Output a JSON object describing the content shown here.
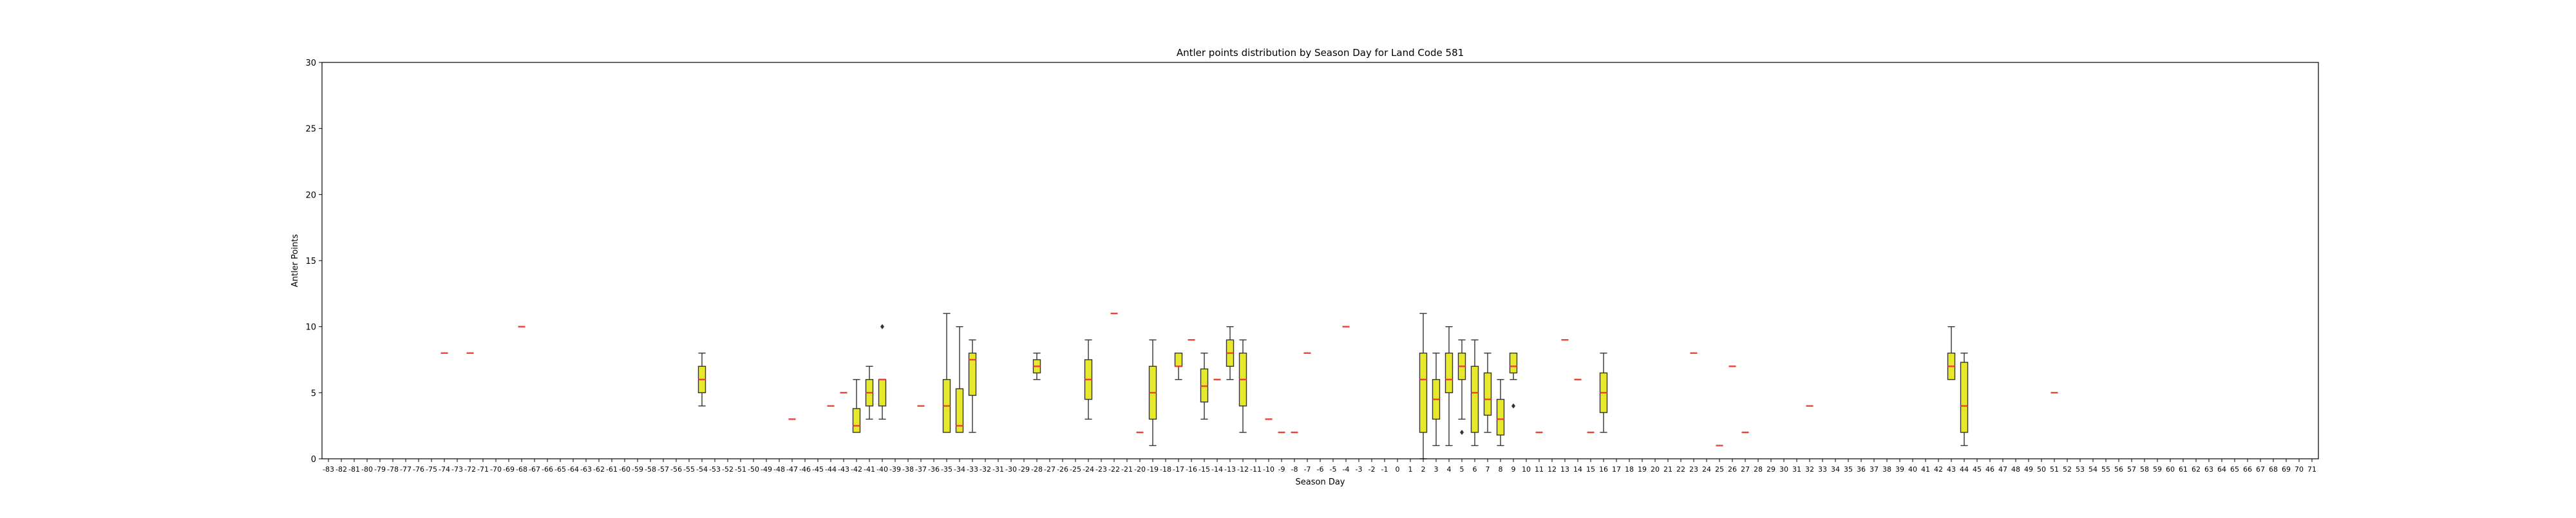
{
  "chart_data": {
    "type": "box",
    "title": "Antler points distribution by Season Day for Land Code 581",
    "xlabel": "Season Day",
    "ylabel": "Antler Points",
    "x_range": [
      -83,
      71
    ],
    "ylim": [
      0,
      30
    ],
    "yticks": [
      0,
      5,
      10,
      15,
      20,
      25,
      30
    ],
    "grid": false,
    "colors": {
      "box_fill": "#e8e82a",
      "median": "#e8443a",
      "edge": "#333333"
    },
    "boxes": [
      {
        "day": -74,
        "min": 8,
        "q1": 8,
        "median": 8,
        "q3": 8,
        "max": 8,
        "outliers": []
      },
      {
        "day": -72,
        "min": 8,
        "q1": 8,
        "median": 8,
        "q3": 8,
        "max": 8,
        "outliers": []
      },
      {
        "day": -68,
        "min": 10,
        "q1": 10,
        "median": 10,
        "q3": 10,
        "max": 10,
        "outliers": []
      },
      {
        "day": -54,
        "min": 4,
        "q1": 5,
        "median": 6,
        "q3": 7,
        "max": 8,
        "outliers": []
      },
      {
        "day": -47,
        "min": 3,
        "q1": 3,
        "median": 3,
        "q3": 3,
        "max": 3,
        "outliers": []
      },
      {
        "day": -44,
        "min": 4,
        "q1": 4,
        "median": 4,
        "q3": 4,
        "max": 4,
        "outliers": []
      },
      {
        "day": -43,
        "min": 5,
        "q1": 5,
        "median": 5,
        "q3": 5,
        "max": 5,
        "outliers": []
      },
      {
        "day": -42,
        "min": 2,
        "q1": 2,
        "median": 2.5,
        "q3": 3.8,
        "max": 6,
        "outliers": []
      },
      {
        "day": -41,
        "min": 3,
        "q1": 4,
        "median": 5,
        "q3": 6,
        "max": 7,
        "outliers": []
      },
      {
        "day": -40,
        "min": 3,
        "q1": 4,
        "median": 6,
        "q3": 6,
        "max": 6,
        "outliers": [
          10
        ]
      },
      {
        "day": -37,
        "min": 4,
        "q1": 4,
        "median": 4,
        "q3": 4,
        "max": 4,
        "outliers": []
      },
      {
        "day": -35,
        "min": 2,
        "q1": 2,
        "median": 4,
        "q3": 6,
        "max": 11,
        "outliers": []
      },
      {
        "day": -34,
        "min": 2,
        "q1": 2,
        "median": 2.5,
        "q3": 5.3,
        "max": 10,
        "outliers": []
      },
      {
        "day": -33,
        "min": 2,
        "q1": 4.8,
        "median": 7.5,
        "q3": 8,
        "max": 9,
        "outliers": []
      },
      {
        "day": -28,
        "min": 6,
        "q1": 6.5,
        "median": 7,
        "q3": 7.5,
        "max": 8,
        "outliers": []
      },
      {
        "day": -24,
        "min": 3,
        "q1": 4.5,
        "median": 6,
        "q3": 7.5,
        "max": 9,
        "outliers": []
      },
      {
        "day": -22,
        "min": 11,
        "q1": 11,
        "median": 11,
        "q3": 11,
        "max": 11,
        "outliers": []
      },
      {
        "day": -20,
        "min": 2,
        "q1": 2,
        "median": 2,
        "q3": 2,
        "max": 2,
        "outliers": []
      },
      {
        "day": -19,
        "min": 1,
        "q1": 3,
        "median": 5,
        "q3": 7,
        "max": 9,
        "outliers": []
      },
      {
        "day": -17,
        "min": 6,
        "q1": 7,
        "median": 7,
        "q3": 8,
        "max": 8,
        "outliers": []
      },
      {
        "day": -16,
        "min": 9,
        "q1": 9,
        "median": 9,
        "q3": 9,
        "max": 9,
        "outliers": []
      },
      {
        "day": -15,
        "min": 3,
        "q1": 4.3,
        "median": 5.5,
        "q3": 6.8,
        "max": 8,
        "outliers": []
      },
      {
        "day": -14,
        "min": 6,
        "q1": 6,
        "median": 6,
        "q3": 6,
        "max": 6,
        "outliers": []
      },
      {
        "day": -13,
        "min": 6,
        "q1": 7,
        "median": 8,
        "q3": 9,
        "max": 10,
        "outliers": []
      },
      {
        "day": -12,
        "min": 2,
        "q1": 4,
        "median": 6,
        "q3": 8,
        "max": 9,
        "outliers": []
      },
      {
        "day": -10,
        "min": 3,
        "q1": 3,
        "median": 3,
        "q3": 3,
        "max": 3,
        "outliers": []
      },
      {
        "day": -9,
        "min": 2,
        "q1": 2,
        "median": 2,
        "q3": 2,
        "max": 2,
        "outliers": []
      },
      {
        "day": -8,
        "min": 2,
        "q1": 2,
        "median": 2,
        "q3": 2,
        "max": 2,
        "outliers": []
      },
      {
        "day": -7,
        "min": 8,
        "q1": 8,
        "median": 8,
        "q3": 8,
        "max": 8,
        "outliers": []
      },
      {
        "day": -4,
        "min": 10,
        "q1": 10,
        "median": 10,
        "q3": 10,
        "max": 10,
        "outliers": []
      },
      {
        "day": 2,
        "min": 0,
        "q1": 2,
        "median": 6,
        "q3": 8,
        "max": 11,
        "outliers": []
      },
      {
        "day": 3,
        "min": 1,
        "q1": 3,
        "median": 4.5,
        "q3": 6,
        "max": 8,
        "outliers": []
      },
      {
        "day": 4,
        "min": 1,
        "q1": 5,
        "median": 6,
        "q3": 8,
        "max": 10,
        "outliers": []
      },
      {
        "day": 5,
        "min": 3,
        "q1": 6,
        "median": 7,
        "q3": 8,
        "max": 9,
        "outliers": [
          2
        ]
      },
      {
        "day": 6,
        "min": 1,
        "q1": 2,
        "median": 5,
        "q3": 7,
        "max": 9,
        "outliers": []
      },
      {
        "day": 7,
        "min": 2,
        "q1": 3.3,
        "median": 4.5,
        "q3": 6.5,
        "max": 8,
        "outliers": []
      },
      {
        "day": 8,
        "min": 1,
        "q1": 1.8,
        "median": 3,
        "q3": 4.5,
        "max": 6,
        "outliers": []
      },
      {
        "day": 9,
        "min": 6,
        "q1": 6.5,
        "median": 7,
        "q3": 8,
        "max": 8,
        "outliers": [
          4
        ]
      },
      {
        "day": 11,
        "min": 2,
        "q1": 2,
        "median": 2,
        "q3": 2,
        "max": 2,
        "outliers": []
      },
      {
        "day": 13,
        "min": 9,
        "q1": 9,
        "median": 9,
        "q3": 9,
        "max": 9,
        "outliers": []
      },
      {
        "day": 14,
        "min": 6,
        "q1": 6,
        "median": 6,
        "q3": 6,
        "max": 6,
        "outliers": []
      },
      {
        "day": 15,
        "min": 2,
        "q1": 2,
        "median": 2,
        "q3": 2,
        "max": 2,
        "outliers": []
      },
      {
        "day": 16,
        "min": 2,
        "q1": 3.5,
        "median": 5,
        "q3": 6.5,
        "max": 8,
        "outliers": []
      },
      {
        "day": 23,
        "min": 8,
        "q1": 8,
        "median": 8,
        "q3": 8,
        "max": 8,
        "outliers": []
      },
      {
        "day": 25,
        "min": 1,
        "q1": 1,
        "median": 1,
        "q3": 1,
        "max": 1,
        "outliers": []
      },
      {
        "day": 26,
        "min": 7,
        "q1": 7,
        "median": 7,
        "q3": 7,
        "max": 7,
        "outliers": []
      },
      {
        "day": 27,
        "min": 2,
        "q1": 2,
        "median": 2,
        "q3": 2,
        "max": 2,
        "outliers": []
      },
      {
        "day": 32,
        "min": 4,
        "q1": 4,
        "median": 4,
        "q3": 4,
        "max": 4,
        "outliers": []
      },
      {
        "day": 43,
        "min": 6,
        "q1": 6,
        "median": 7,
        "q3": 8,
        "max": 10,
        "outliers": []
      },
      {
        "day": 44,
        "min": 1,
        "q1": 2,
        "median": 4,
        "q3": 7.3,
        "max": 8,
        "outliers": []
      },
      {
        "day": 51,
        "min": 5,
        "q1": 5,
        "median": 5,
        "q3": 5,
        "max": 5,
        "outliers": []
      }
    ]
  }
}
